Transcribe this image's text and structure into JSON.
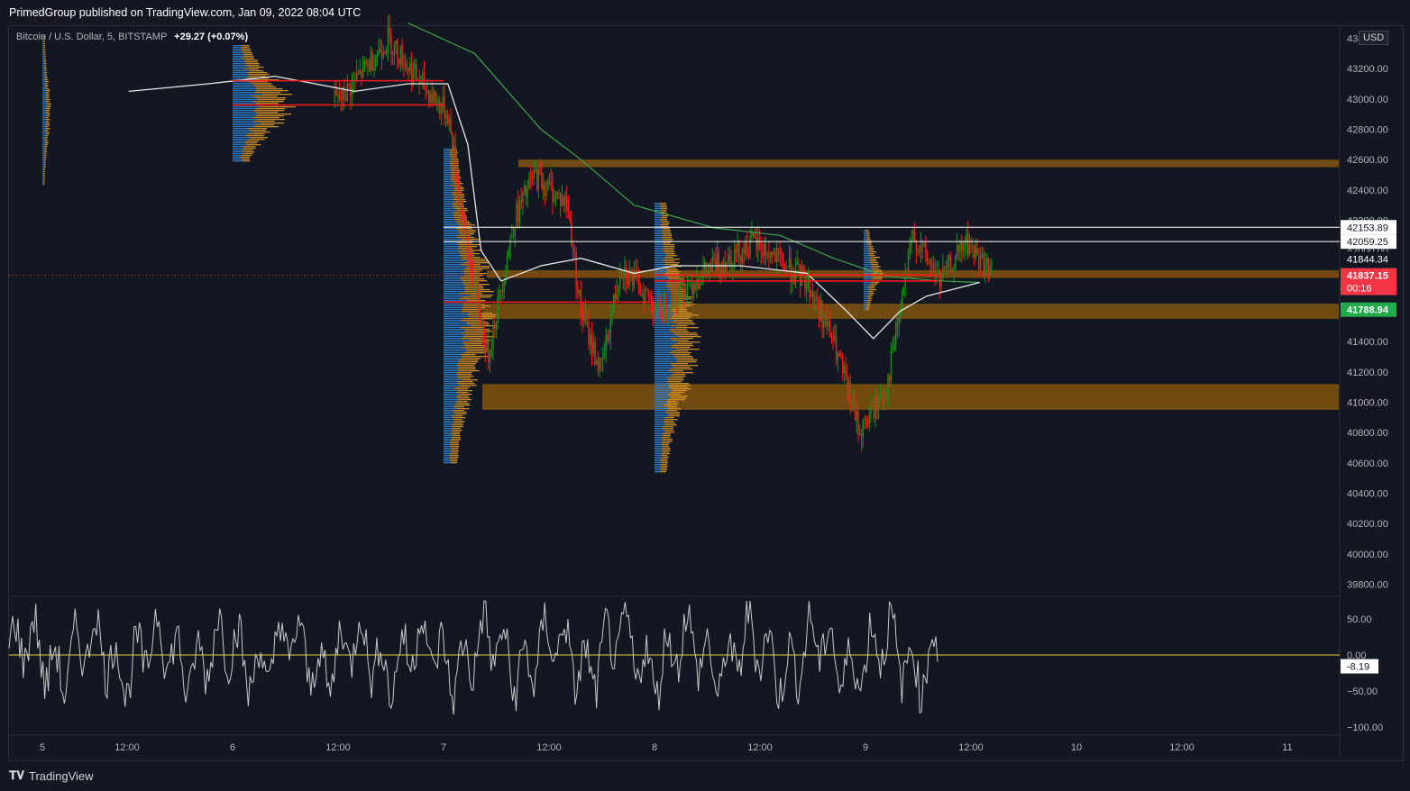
{
  "header": {
    "publisher": "PrimedGroup published on TradingView.com, Jan 09, 2022 08:04 UTC"
  },
  "legend": {
    "symbol": "Bitcoin / U.S. Dollar, 5, BITSTAMP",
    "change": "+29.27 (+0.07%)"
  },
  "axis_currency": "USD",
  "footer": {
    "brand": "TradingView",
    "logo_icon": "tradingview-logo-icon"
  },
  "price_labels": {
    "line1": "42153.89",
    "line2": "42059.25",
    "line3": "41844.34",
    "current": "41837.15",
    "countdown": "00:16",
    "green": "41788.94",
    "osc_value": "-8.19"
  },
  "colors": {
    "background": "#131722",
    "up": "#1b8f1b",
    "down": "#ff1a1a",
    "zone": "#7a5010",
    "vwap": "#e8e8e8",
    "ma": "#3fa34d",
    "profile_blue": "#2f7fd0",
    "profile_orange": "#d9962a",
    "zero_line": "#e6d23a"
  },
  "chart_data": [
    {
      "type": "line",
      "title": "",
      "series_kind": "candlestick price chart",
      "y_ticks": [
        "43400.00",
        "43200.00",
        "43000.00",
        "42800.00",
        "42600.00",
        "42400.00",
        "42200.00",
        "42000.00",
        "41800.00",
        "41600.00",
        "41400.00",
        "41200.00",
        "41000.00",
        "40800.00",
        "40600.00",
        "40400.00",
        "40200.00",
        "40000.00",
        "39800.00"
      ],
      "x_ticks": [
        "5",
        "12:00",
        "6",
        "12:00",
        "7",
        "12:00",
        "8",
        "12:00",
        "9",
        "12:00",
        "10",
        "12:00",
        "11"
      ],
      "ylim": [
        39720,
        43480
      ],
      "zones": [
        {
          "from": 42550,
          "to": 42600
        },
        {
          "from": 41820,
          "to": 41870
        },
        {
          "from": 41550,
          "to": 41650
        },
        {
          "from": 40950,
          "to": 41120
        }
      ],
      "horizontal_lines": [
        {
          "value": 42153.89,
          "color": "#ffffff"
        },
        {
          "value": 42059.25,
          "color": "#ffffff"
        },
        {
          "value": 41844.34,
          "color": "#ffffff"
        },
        {
          "value": 41837.15,
          "color": "#ff1a1a"
        }
      ],
      "price_path": [
        {
          "t": 0.0,
          "p": 43150
        },
        {
          "t": 0.05,
          "p": 43080
        },
        {
          "t": 0.1,
          "p": 43000
        },
        {
          "t": 0.14,
          "p": 43350
        },
        {
          "t": 0.17,
          "p": 43000
        },
        {
          "t": 0.21,
          "p": 42850
        },
        {
          "t": 0.25,
          "p": 43000
        },
        {
          "t": 0.285,
          "p": 43400
        },
        {
          "t": 0.31,
          "p": 43100
        },
        {
          "t": 0.33,
          "p": 42900
        },
        {
          "t": 0.345,
          "p": 42000
        },
        {
          "t": 0.36,
          "p": 41300
        },
        {
          "t": 0.38,
          "p": 42200
        },
        {
          "t": 0.395,
          "p": 42500
        },
        {
          "t": 0.42,
          "p": 42300
        },
        {
          "t": 0.43,
          "p": 41600
        },
        {
          "t": 0.445,
          "p": 41200
        },
        {
          "t": 0.46,
          "p": 41900
        },
        {
          "t": 0.49,
          "p": 41600
        },
        {
          "t": 0.5,
          "p": 41700
        },
        {
          "t": 0.53,
          "p": 41900
        },
        {
          "t": 0.56,
          "p": 42050
        },
        {
          "t": 0.6,
          "p": 41800
        },
        {
          "t": 0.62,
          "p": 41400
        },
        {
          "t": 0.64,
          "p": 40800
        },
        {
          "t": 0.66,
          "p": 41100
        },
        {
          "t": 0.68,
          "p": 42100
        },
        {
          "t": 0.7,
          "p": 41800
        },
        {
          "t": 0.72,
          "p": 42050
        },
        {
          "t": 0.74,
          "p": 41837
        }
      ],
      "vwap_path": [
        {
          "t": 0.09,
          "p": 43050
        },
        {
          "t": 0.15,
          "p": 43100
        },
        {
          "t": 0.2,
          "p": 43150
        },
        {
          "t": 0.26,
          "p": 43050
        },
        {
          "t": 0.3,
          "p": 43100
        },
        {
          "t": 0.33,
          "p": 43100
        },
        {
          "t": 0.345,
          "p": 42700
        },
        {
          "t": 0.355,
          "p": 42000
        },
        {
          "t": 0.37,
          "p": 41800
        },
        {
          "t": 0.4,
          "p": 41900
        },
        {
          "t": 0.43,
          "p": 41950
        },
        {
          "t": 0.47,
          "p": 41850
        },
        {
          "t": 0.5,
          "p": 41900
        },
        {
          "t": 0.55,
          "p": 41900
        },
        {
          "t": 0.6,
          "p": 41850
        },
        {
          "t": 0.63,
          "p": 41600
        },
        {
          "t": 0.65,
          "p": 41420
        },
        {
          "t": 0.67,
          "p": 41600
        },
        {
          "t": 0.69,
          "p": 41700
        },
        {
          "t": 0.73,
          "p": 41790
        }
      ],
      "ma_path": [
        {
          "t": 0.3,
          "p": 43500
        },
        {
          "t": 0.35,
          "p": 43300
        },
        {
          "t": 0.4,
          "p": 42800
        },
        {
          "t": 0.43,
          "p": 42600
        },
        {
          "t": 0.47,
          "p": 42300
        },
        {
          "t": 0.53,
          "p": 42150
        },
        {
          "t": 0.58,
          "p": 42100
        },
        {
          "t": 0.62,
          "p": 41950
        },
        {
          "t": 0.66,
          "p": 41830
        },
        {
          "t": 0.7,
          "p": 41800
        },
        {
          "t": 0.73,
          "p": 41790
        }
      ]
    },
    {
      "type": "line",
      "title": "",
      "series_kind": "oscillator",
      "y_ticks": [
        "50.00",
        "0.00",
        "−50.00",
        "−100.00"
      ],
      "ylim": [
        -110,
        80
      ],
      "last_value": -8.19
    }
  ]
}
